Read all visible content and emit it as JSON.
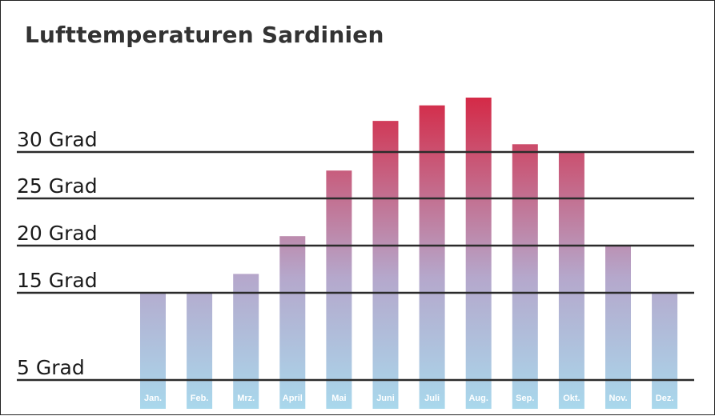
{
  "chart_data": {
    "type": "bar",
    "title": "Lufttemperaturen Sardinien",
    "categories": [
      "Jan.",
      "Feb.",
      "Mrz.",
      "April",
      "Mai",
      "Juni",
      "Juli",
      "Aug.",
      "Sep.",
      "Okt.",
      "Nov.",
      "Dez."
    ],
    "values": [
      15,
      15,
      17,
      21,
      28,
      34,
      36,
      37,
      31,
      30,
      20,
      15
    ],
    "y_ticks": [
      {
        "value": 5,
        "label": "5 Grad"
      },
      {
        "value": 15,
        "label": "15 Grad"
      },
      {
        "value": 20,
        "label": "20 Grad"
      },
      {
        "value": 25,
        "label": "25 Grad"
      },
      {
        "value": 30,
        "label": "30 Grad"
      }
    ],
    "grid": true,
    "legend": "none",
    "colors": {
      "bottom": "#a9d8ec",
      "middle": "#b5a8cc",
      "top": "#d42a47",
      "line": "#2b2b2b"
    }
  }
}
